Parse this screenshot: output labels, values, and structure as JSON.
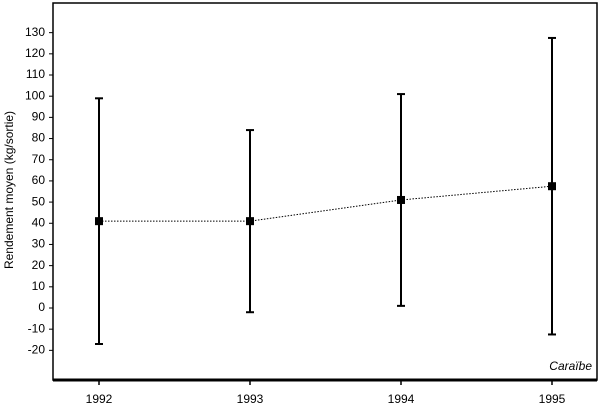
{
  "chart_data": {
    "type": "errorbar-line",
    "y_label": "Rendement moyen (kg/sortie)",
    "annotation": "Caraïbe",
    "categories": [
      "1992",
      "1993",
      "1994",
      "1995"
    ],
    "values": [
      41,
      41,
      51,
      57.5
    ],
    "errors": [
      58,
      43,
      50,
      70
    ],
    "color": "#000000",
    "ylim": [
      -34,
      144
    ],
    "yticks": [
      -20,
      -10,
      0,
      10,
      20,
      30,
      40,
      50,
      60,
      70,
      80,
      90,
      100,
      110,
      120,
      130
    ]
  }
}
